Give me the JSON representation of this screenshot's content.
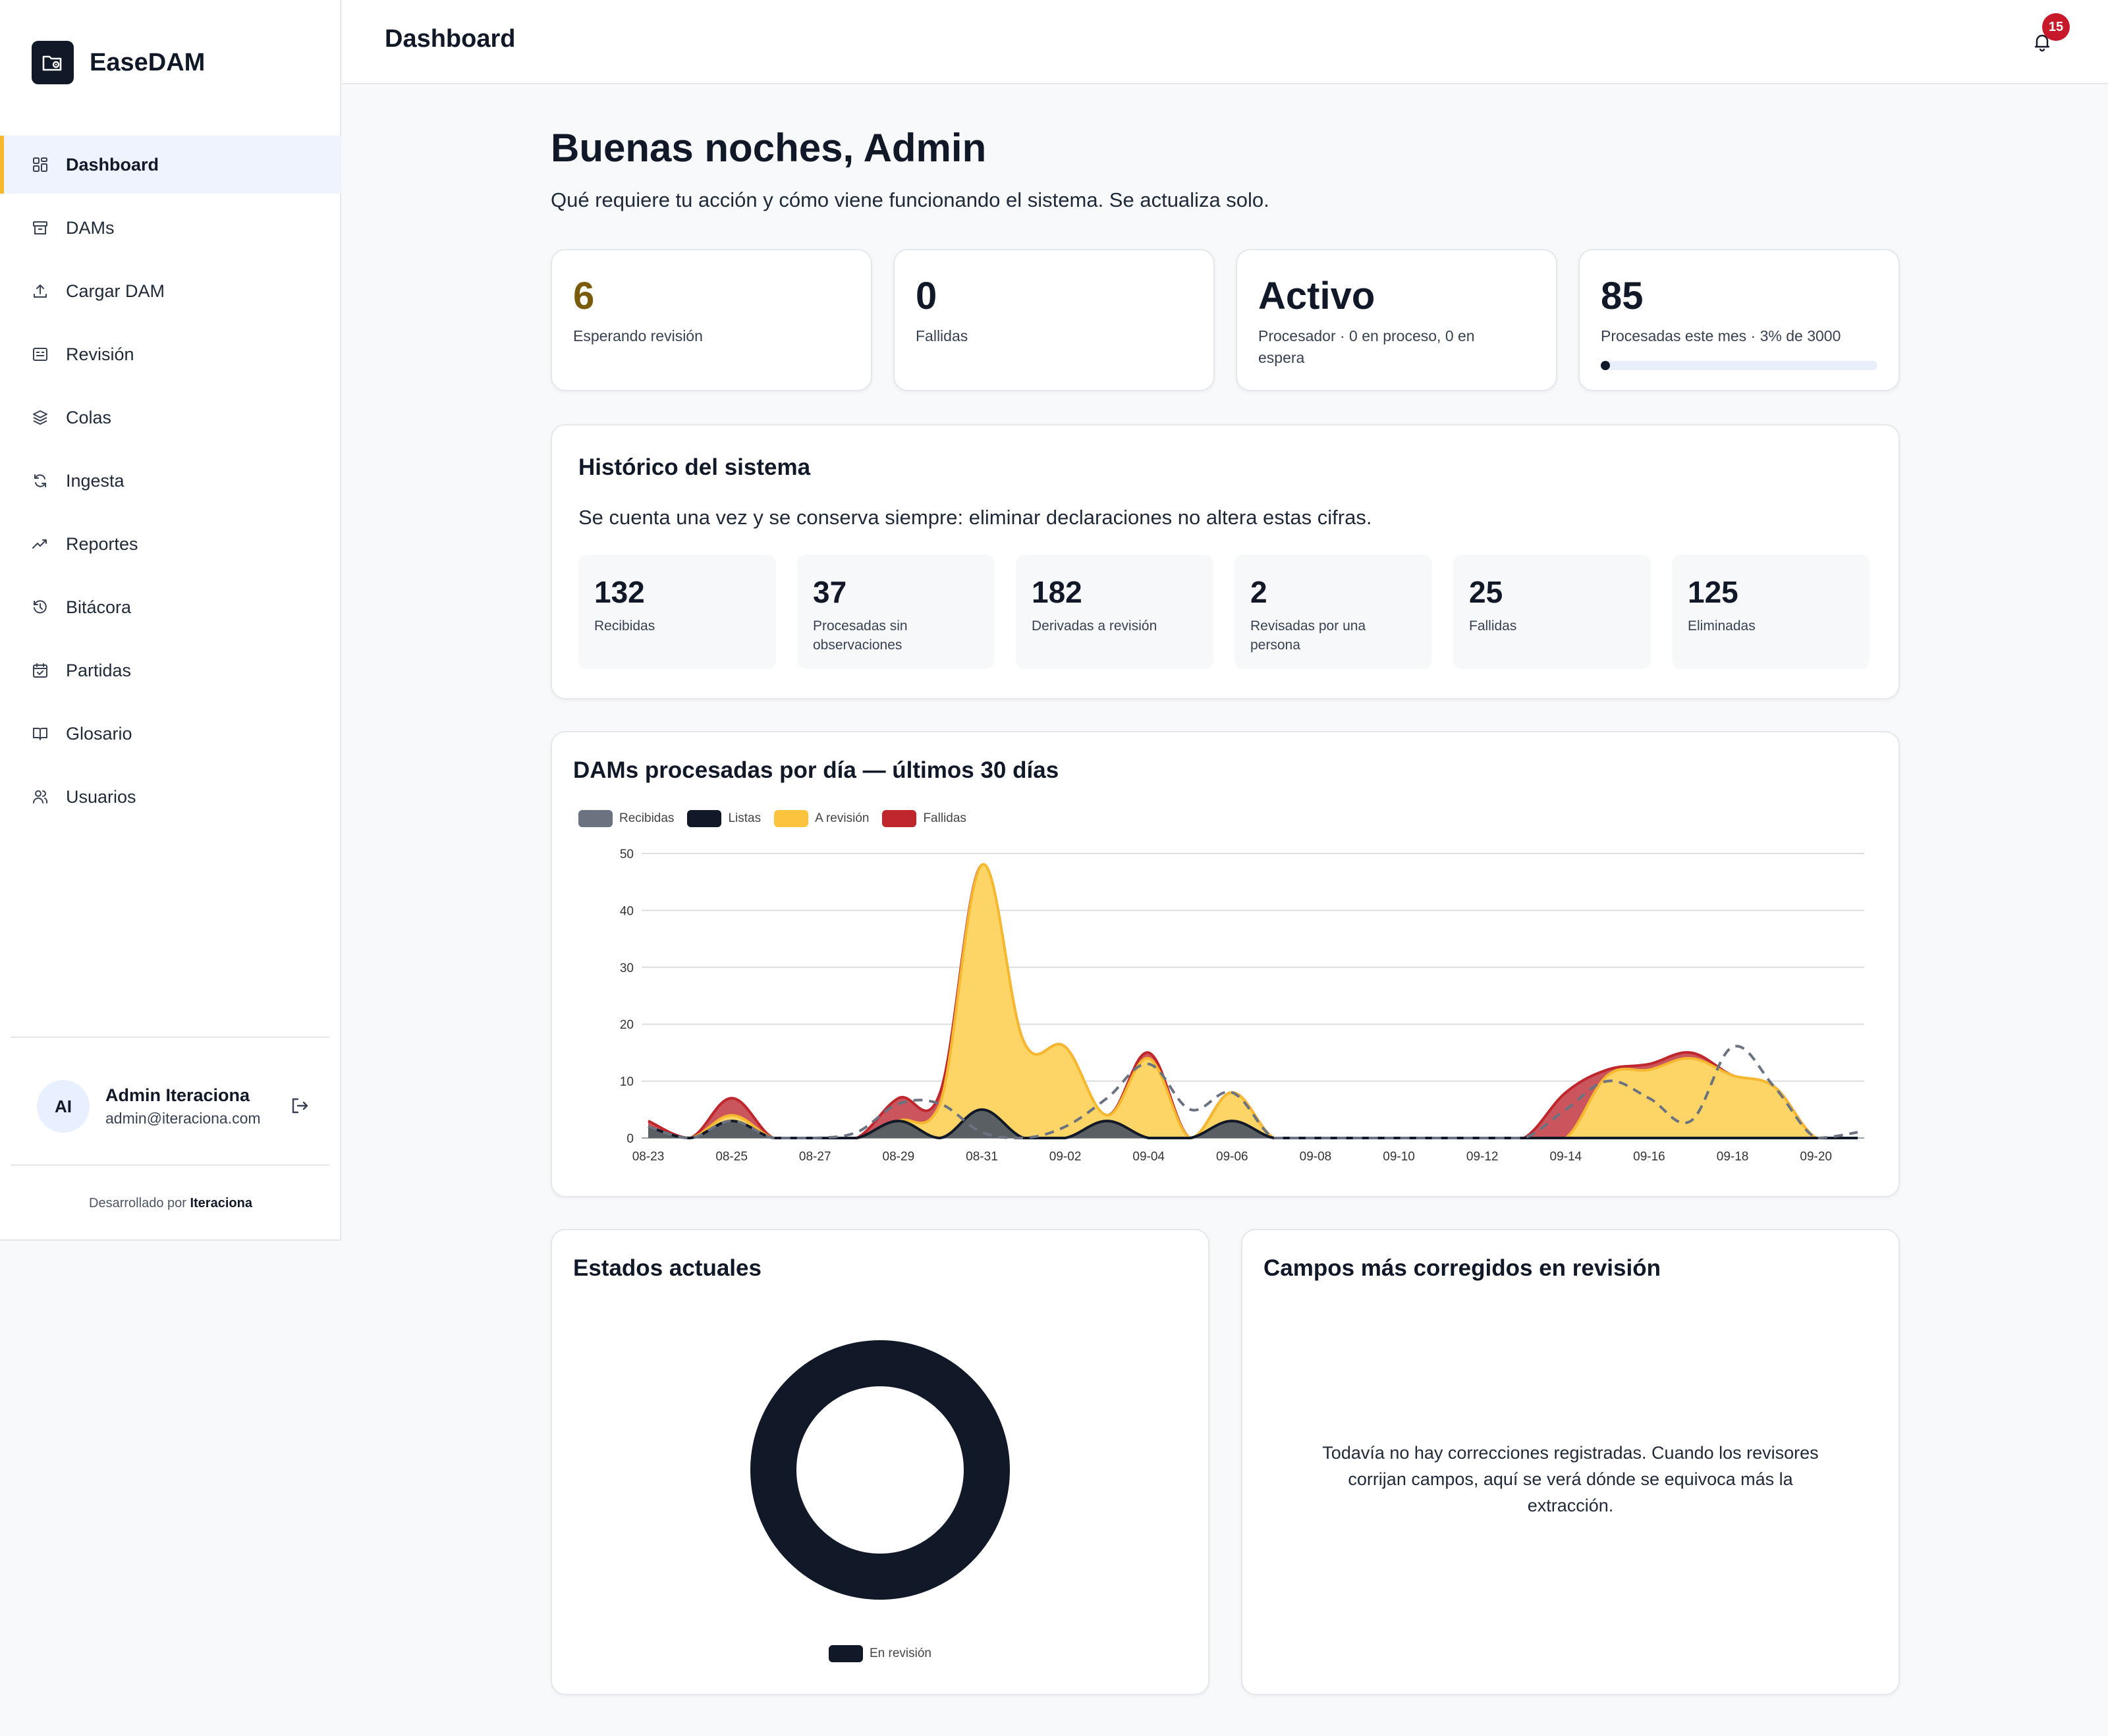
{
  "brand": {
    "name": "EaseDAM"
  },
  "sidebar": {
    "items": [
      {
        "label": "Dashboard",
        "icon": "dashboard-icon",
        "active": true
      },
      {
        "label": "DAMs",
        "icon": "archive-icon"
      },
      {
        "label": "Cargar DAM",
        "icon": "upload-icon"
      },
      {
        "label": "Revisión",
        "icon": "review-icon"
      },
      {
        "label": "Colas",
        "icon": "layers-icon"
      },
      {
        "label": "Ingesta",
        "icon": "refresh-icon"
      },
      {
        "label": "Reportes",
        "icon": "trend-icon"
      },
      {
        "label": "Bitácora",
        "icon": "history-icon"
      },
      {
        "label": "Partidas",
        "icon": "calendar-check-icon"
      },
      {
        "label": "Glosario",
        "icon": "book-icon"
      },
      {
        "label": "Usuarios",
        "icon": "users-icon"
      }
    ],
    "user": {
      "initials": "AI",
      "name": "Admin Iteraciona",
      "email": "admin@iteraciona.com"
    },
    "credit": {
      "prefix": "Desarrollado por",
      "company": "Iteraciona"
    }
  },
  "header": {
    "title": "Dashboard",
    "notifications": "15"
  },
  "main": {
    "greeting": "Buenas noches, Admin",
    "subtitle": "Qué requiere tu acción y cómo viene funcionando el sistema. Se actualiza solo.",
    "stats": [
      {
        "value": "6",
        "label": "Esperando revisión",
        "color": "#7a5b0c"
      },
      {
        "value": "0",
        "label": "Fallidas",
        "color": "#111827"
      },
      {
        "value": "Activo",
        "label": "Procesador · 0 en proceso, 0 en espera",
        "color": "#111827"
      },
      {
        "value": "85",
        "label": "Procesadas este mes · 3% de 3000",
        "color": "#111827",
        "progress": 0.03
      }
    ],
    "history": {
      "title": "Histórico del sistema",
      "subtitle": "Se cuenta una vez y se conserva siempre: eliminar declaraciones no altera estas cifras.",
      "tiles": [
        {
          "value": "132",
          "label": "Recibidas"
        },
        {
          "value": "37",
          "label": "Procesadas sin observaciones"
        },
        {
          "value": "182",
          "label": "Derivadas a revisión"
        },
        {
          "value": "2",
          "label": "Revisadas por una persona"
        },
        {
          "value": "25",
          "label": "Fallidas"
        },
        {
          "value": "125",
          "label": "Eliminadas"
        }
      ]
    },
    "daily_chart_title": "DAMs procesadas por día — últimos 30 días",
    "states_title": "Estados actuales",
    "states_legend": "En revisión",
    "corrections": {
      "title": "Campos más corregidos en revisión",
      "empty": "Todavía no hay correcciones registradas. Cuando los revisores corrijan campos, aquí se verá dónde se equivoca más la extracción."
    }
  },
  "chart_data": [
    {
      "type": "area",
      "title": "DAMs procesadas por día — últimos 30 días",
      "x": [
        "08-23",
        "08-24",
        "08-25",
        "08-26",
        "08-27",
        "08-28",
        "08-29",
        "08-30",
        "08-31",
        "09-01",
        "09-02",
        "09-03",
        "09-04",
        "09-05",
        "09-06",
        "09-07",
        "09-08",
        "09-09",
        "09-10",
        "09-11",
        "09-12",
        "09-13",
        "09-14",
        "09-15",
        "09-16",
        "09-17",
        "09-18",
        "09-19",
        "09-20",
        "09-21"
      ],
      "x_tick_labels": [
        "08-23",
        "08-25",
        "08-27",
        "08-29",
        "08-31",
        "09-02",
        "09-04",
        "09-06",
        "09-08",
        "09-10",
        "09-12",
        "09-14",
        "09-16",
        "09-18",
        "09-20"
      ],
      "ylim": [
        0,
        50
      ],
      "yticks": [
        0,
        10,
        20,
        30,
        40,
        50
      ],
      "stacked": true,
      "grid": true,
      "legend": "top-left",
      "series": [
        {
          "name": "Recibidas",
          "color": "#6b7280",
          "style": "dashed-line",
          "values": [
            2,
            0,
            3,
            0,
            0,
            1,
            6,
            6,
            1,
            0,
            2,
            7,
            13,
            5,
            8,
            0,
            0,
            0,
            0,
            0,
            0,
            0,
            5,
            10,
            7,
            3,
            16,
            9,
            0,
            1
          ]
        },
        {
          "name": "Listas",
          "color": "#111827",
          "values": [
            2,
            0,
            3,
            0,
            0,
            0,
            3,
            0,
            5,
            0,
            0,
            3,
            0,
            0,
            3,
            0,
            0,
            0,
            0,
            0,
            0,
            0,
            0,
            0,
            0,
            0,
            0,
            0,
            0,
            0
          ]
        },
        {
          "name": "A revisión",
          "color": "#fcc43c",
          "values": [
            0,
            0,
            1,
            0,
            0,
            0,
            0,
            6,
            43,
            17,
            16,
            1,
            14,
            0,
            5,
            0,
            0,
            0,
            0,
            0,
            0,
            0,
            0,
            11,
            12,
            14,
            11,
            9,
            0,
            0
          ]
        },
        {
          "name": "Fallidas",
          "color": "#c0272d",
          "values": [
            1,
            0,
            3,
            0,
            0,
            0,
            4,
            2,
            0,
            0,
            0,
            0,
            1,
            0,
            0,
            0,
            0,
            0,
            0,
            0,
            0,
            0,
            8,
            1,
            1,
            1,
            0,
            0,
            0,
            0
          ]
        }
      ]
    },
    {
      "type": "pie",
      "title": "Estados actuales",
      "categories": [
        "En revisión"
      ],
      "values": [
        6
      ],
      "colors": [
        "#111827"
      ]
    }
  ]
}
